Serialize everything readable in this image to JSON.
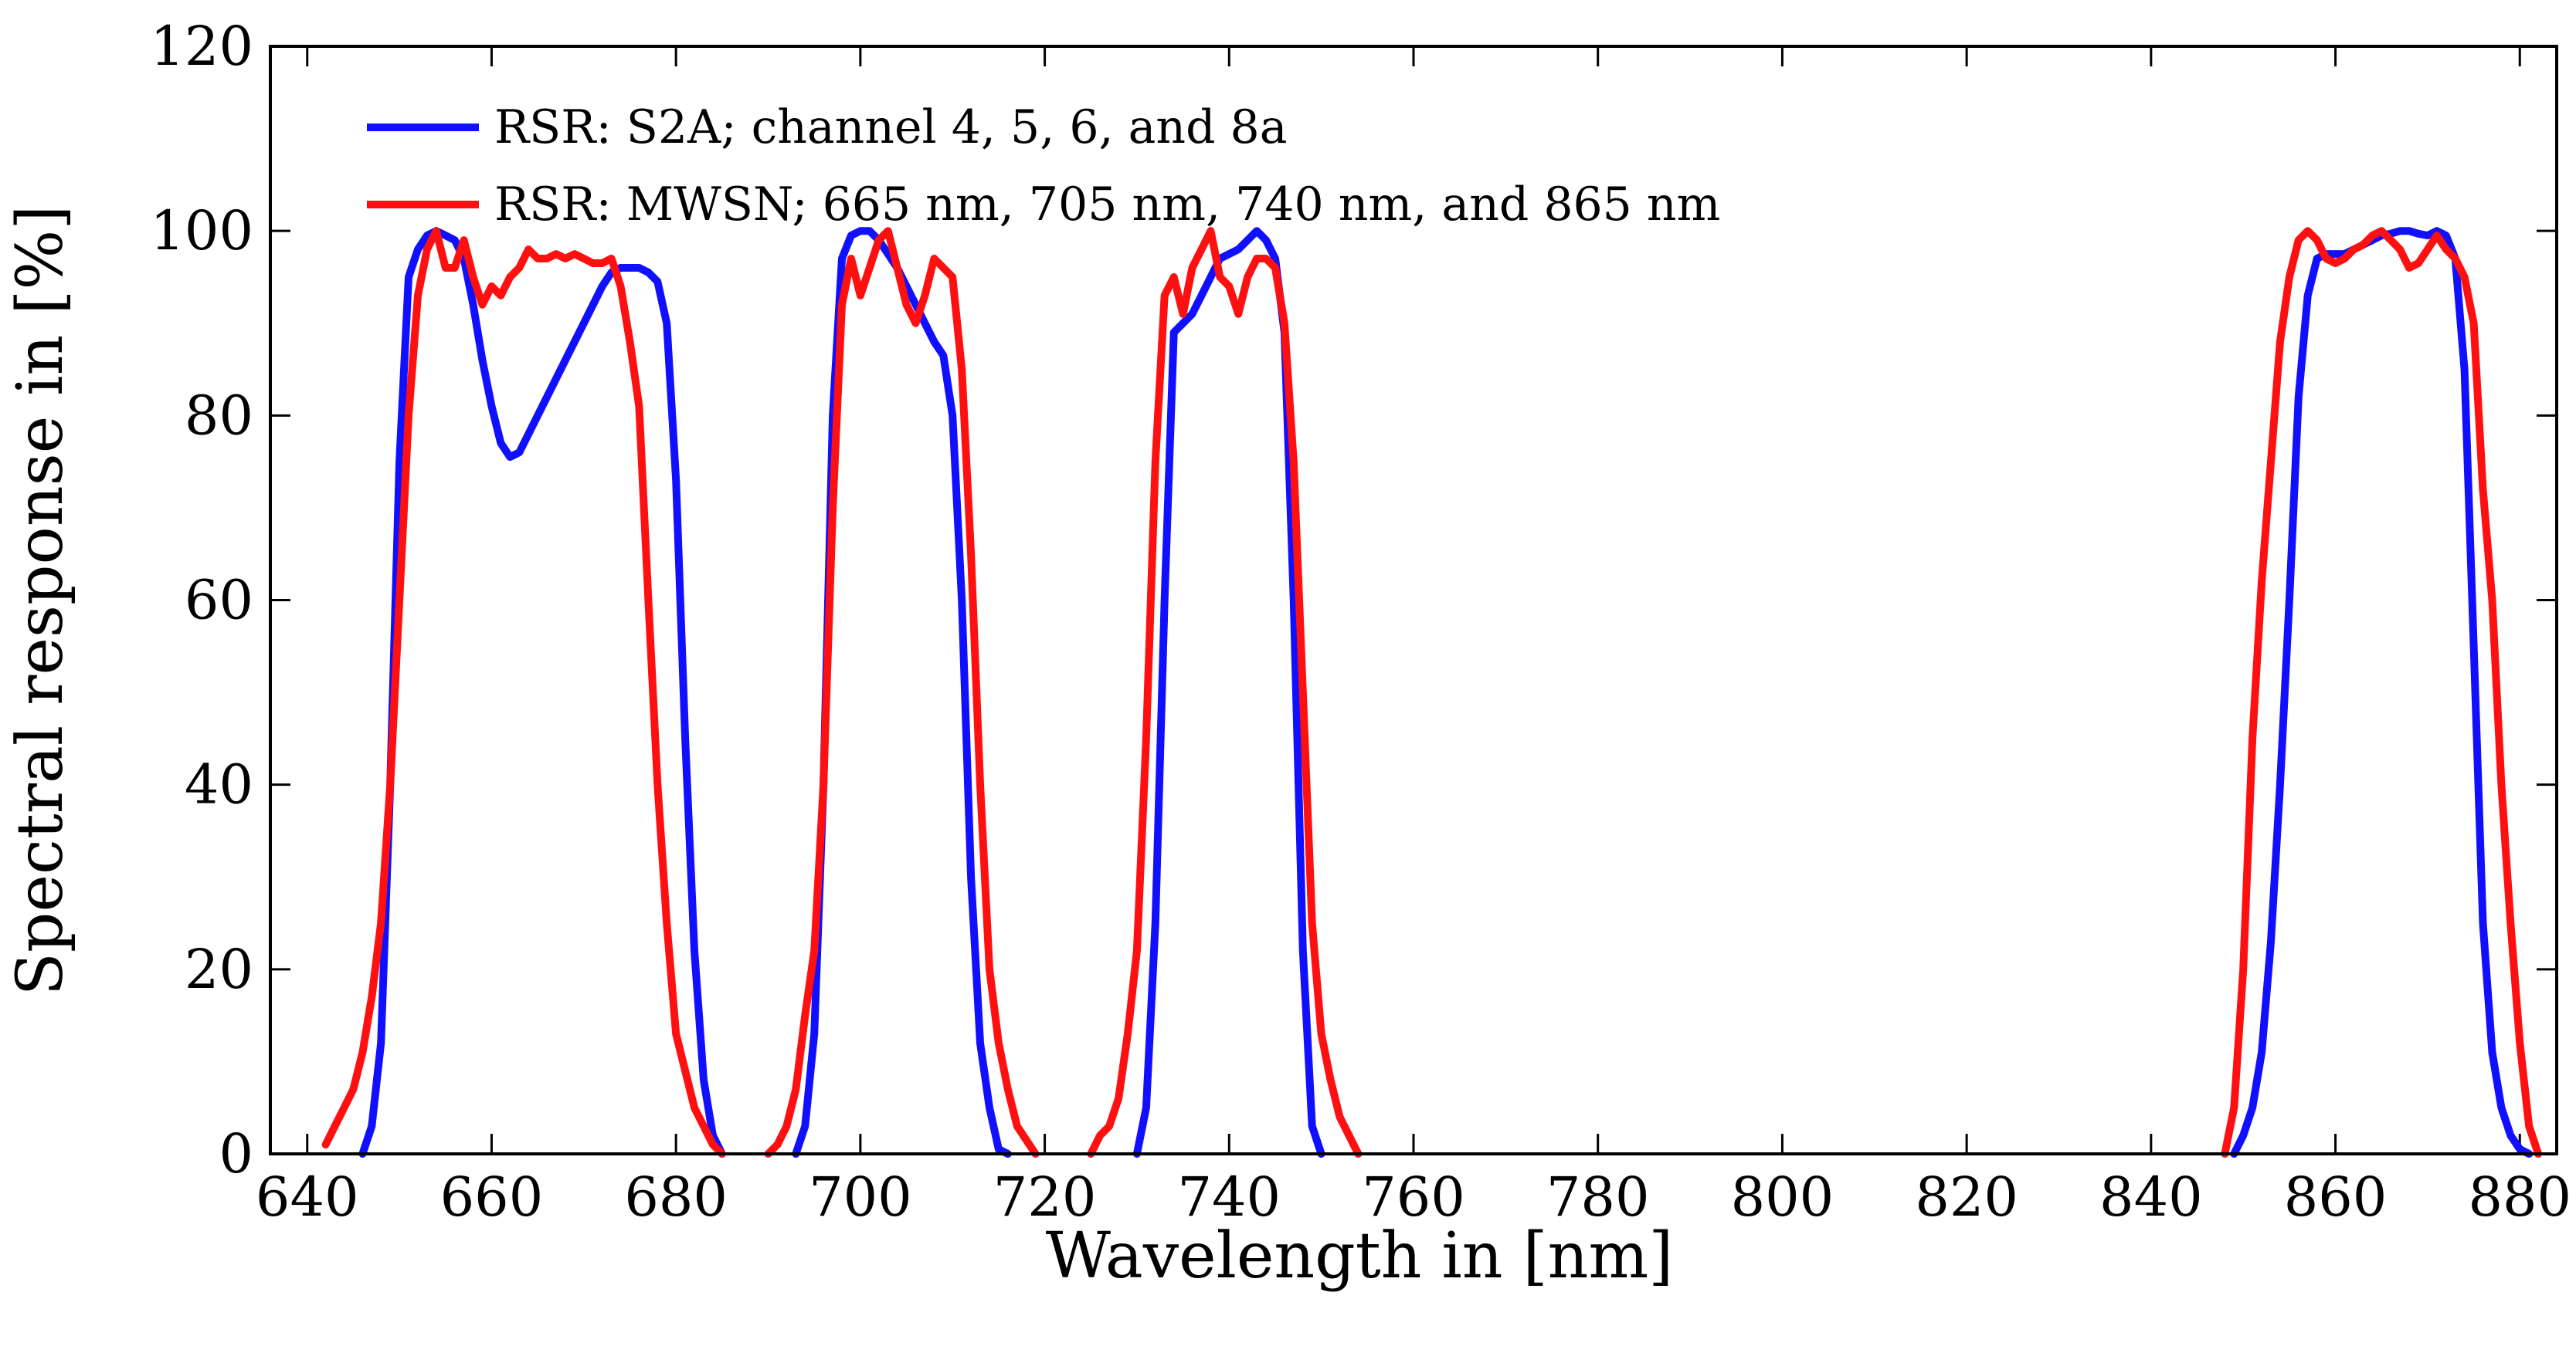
{
  "chart_data": {
    "type": "line",
    "title": "",
    "xlabel": "Wavelength in [nm]",
    "ylabel": "Spectral response in [%]",
    "xlim": [
      636,
      884
    ],
    "ylim": [
      0,
      120
    ],
    "xticks": [
      640,
      660,
      680,
      700,
      720,
      740,
      760,
      780,
      800,
      820,
      840,
      860,
      880
    ],
    "yticks": [
      0,
      20,
      40,
      60,
      80,
      100,
      120
    ],
    "grid": false,
    "legend_position": "top-left",
    "series": [
      {
        "name": "RSR: S2A; channel 4, 5, 6, and 8a",
        "color": "#1010ff",
        "segments": [
          [
            [
              646,
              0
            ],
            [
              647,
              3
            ],
            [
              648,
              12
            ],
            [
              649,
              40
            ],
            [
              650,
              75
            ],
            [
              651,
              95
            ],
            [
              652,
              98
            ],
            [
              653,
              99.5
            ],
            [
              654,
              100
            ],
            [
              655,
              99.5
            ],
            [
              656,
              99
            ],
            [
              657,
              97
            ],
            [
              658,
              92
            ],
            [
              659,
              86
            ],
            [
              660,
              81
            ],
            [
              661,
              77
            ],
            [
              662,
              75.5
            ],
            [
              663,
              76
            ],
            [
              664,
              78
            ],
            [
              666,
              82
            ],
            [
              668,
              86
            ],
            [
              670,
              90
            ],
            [
              672,
              94
            ],
            [
              673,
              95.5
            ],
            [
              674,
              96
            ],
            [
              676,
              96
            ],
            [
              677,
              95.5
            ],
            [
              678,
              94.5
            ],
            [
              679,
              90
            ],
            [
              680,
              73
            ],
            [
              681,
              45
            ],
            [
              682,
              22
            ],
            [
              683,
              8
            ],
            [
              684,
              2
            ],
            [
              685,
              0
            ]
          ],
          [
            [
              693,
              0
            ],
            [
              694,
              3
            ],
            [
              695,
              13
            ],
            [
              696,
              40
            ],
            [
              697,
              80
            ],
            [
              698,
              97
            ],
            [
              699,
              99.5
            ],
            [
              700,
              100
            ],
            [
              701,
              100
            ],
            [
              702,
              99
            ],
            [
              703,
              97.5
            ],
            [
              704,
              96
            ],
            [
              705,
              94
            ],
            [
              706,
              92
            ],
            [
              707,
              90
            ],
            [
              708,
              88
            ],
            [
              709,
              86.5
            ],
            [
              710,
              80
            ],
            [
              711,
              60
            ],
            [
              712,
              30
            ],
            [
              713,
              12
            ],
            [
              714,
              5
            ],
            [
              715,
              0.5
            ],
            [
              716,
              0
            ]
          ],
          [
            [
              730,
              0
            ],
            [
              731,
              5
            ],
            [
              732,
              25
            ],
            [
              733,
              60
            ],
            [
              734,
              89
            ],
            [
              735,
              90
            ],
            [
              736,
              91
            ],
            [
              737,
              93
            ],
            [
              738,
              95
            ],
            [
              739,
              97
            ],
            [
              740,
              97.5
            ],
            [
              741,
              98
            ],
            [
              742,
              99
            ],
            [
              743,
              100
            ],
            [
              744,
              99
            ],
            [
              745,
              97
            ],
            [
              746,
              89
            ],
            [
              747,
              60
            ],
            [
              748,
              22
            ],
            [
              749,
              3
            ],
            [
              750,
              0
            ]
          ],
          [
            [
              849,
              0
            ],
            [
              850,
              2
            ],
            [
              851,
              5
            ],
            [
              852,
              11
            ],
            [
              853,
              23
            ],
            [
              854,
              40
            ],
            [
              855,
              60
            ],
            [
              856,
              82
            ],
            [
              857,
              93
            ],
            [
              858,
              97
            ],
            [
              859,
              97.5
            ],
            [
              860,
              97.5
            ],
            [
              861,
              97.5
            ],
            [
              862,
              98
            ],
            [
              863,
              98.5
            ],
            [
              864,
              99
            ],
            [
              865,
              99.5
            ],
            [
              866,
              99.7
            ],
            [
              867,
              100
            ],
            [
              868,
              100
            ],
            [
              869,
              99.7
            ],
            [
              870,
              99.5
            ],
            [
              871,
              100
            ],
            [
              872,
              99.5
            ],
            [
              873,
              97
            ],
            [
              874,
              85
            ],
            [
              875,
              55
            ],
            [
              876,
              25
            ],
            [
              877,
              11
            ],
            [
              878,
              5
            ],
            [
              879,
              2
            ],
            [
              880,
              0.5
            ],
            [
              881,
              0
            ]
          ]
        ]
      },
      {
        "name": "RSR: MWSN; 665 nm, 705 nm, 740 nm, and 865 nm",
        "color": "#ff1010",
        "segments": [
          [
            [
              642,
              1
            ],
            [
              643,
              3
            ],
            [
              644,
              5
            ],
            [
              645,
              7
            ],
            [
              646,
              11
            ],
            [
              647,
              17
            ],
            [
              648,
              25
            ],
            [
              649,
              40
            ],
            [
              650,
              60
            ],
            [
              651,
              80
            ],
            [
              652,
              93
            ],
            [
              653,
              98
            ],
            [
              654,
              100
            ],
            [
              655,
              96
            ],
            [
              656,
              96
            ],
            [
              657,
              99
            ],
            [
              658,
              95
            ],
            [
              659,
              92
            ],
            [
              660,
              94
            ],
            [
              661,
              93
            ],
            [
              662,
              95
            ],
            [
              663,
              96
            ],
            [
              664,
              98
            ],
            [
              665,
              97
            ],
            [
              666,
              97
            ],
            [
              667,
              97.5
            ],
            [
              668,
              97
            ],
            [
              669,
              97.5
            ],
            [
              670,
              97
            ],
            [
              671,
              96.5
            ],
            [
              672,
              96.5
            ],
            [
              673,
              97
            ],
            [
              674,
              94
            ],
            [
              675,
              88
            ],
            [
              676,
              81
            ],
            [
              677,
              60
            ],
            [
              678,
              40
            ],
            [
              679,
              25
            ],
            [
              680,
              13
            ],
            [
              681,
              9
            ],
            [
              682,
              5
            ],
            [
              683,
              3
            ],
            [
              684,
              1
            ],
            [
              685,
              0
            ]
          ],
          [
            [
              690,
              0
            ],
            [
              691,
              1
            ],
            [
              692,
              3
            ],
            [
              693,
              7
            ],
            [
              694,
              15
            ],
            [
              695,
              22
            ],
            [
              696,
              40
            ],
            [
              697,
              70
            ],
            [
              698,
              92
            ],
            [
              699,
              97
            ],
            [
              700,
              93
            ],
            [
              701,
              96
            ],
            [
              702,
              99
            ],
            [
              703,
              100
            ],
            [
              704,
              96
            ],
            [
              705,
              92
            ],
            [
              706,
              90
            ],
            [
              707,
              93
            ],
            [
              708,
              97
            ],
            [
              709,
              96
            ],
            [
              710,
              95
            ],
            [
              711,
              85
            ],
            [
              712,
              65
            ],
            [
              713,
              40
            ],
            [
              714,
              20
            ],
            [
              715,
              12
            ],
            [
              716,
              7
            ],
            [
              717,
              3
            ],
            [
              718,
              1.5
            ],
            [
              719,
              0
            ]
          ],
          [
            [
              725,
              0
            ],
            [
              726,
              2
            ],
            [
              727,
              3
            ],
            [
              728,
              6
            ],
            [
              729,
              13
            ],
            [
              730,
              22
            ],
            [
              731,
              45
            ],
            [
              732,
              75
            ],
            [
              733,
              93
            ],
            [
              734,
              95
            ],
            [
              735,
              91
            ],
            [
              736,
              96
            ],
            [
              737,
              98
            ],
            [
              738,
              100
            ],
            [
              739,
              95
            ],
            [
              740,
              94
            ],
            [
              741,
              91
            ],
            [
              742,
              95
            ],
            [
              743,
              97
            ],
            [
              744,
              97
            ],
            [
              745,
              96
            ],
            [
              746,
              90
            ],
            [
              747,
              75
            ],
            [
              748,
              50
            ],
            [
              749,
              25
            ],
            [
              750,
              13
            ],
            [
              751,
              8
            ],
            [
              752,
              4
            ],
            [
              753,
              2
            ],
            [
              754,
              0
            ]
          ],
          [
            [
              848,
              0
            ],
            [
              849,
              5
            ],
            [
              850,
              20
            ],
            [
              851,
              45
            ],
            [
              852,
              62
            ],
            [
              853,
              75
            ],
            [
              854,
              88
            ],
            [
              855,
              95
            ],
            [
              856,
              99
            ],
            [
              857,
              100
            ],
            [
              858,
              99
            ],
            [
              859,
              97
            ],
            [
              860,
              96.5
            ],
            [
              861,
              97
            ],
            [
              862,
              98
            ],
            [
              863,
              98.5
            ],
            [
              864,
              99.5
            ],
            [
              865,
              100
            ],
            [
              866,
              99
            ],
            [
              867,
              98
            ],
            [
              868,
              96
            ],
            [
              869,
              96.5
            ],
            [
              870,
              98
            ],
            [
              871,
              99.5
            ],
            [
              872,
              98
            ],
            [
              873,
              97
            ],
            [
              874,
              95
            ],
            [
              875,
              90
            ],
            [
              876,
              72
            ],
            [
              877,
              60
            ],
            [
              878,
              40
            ],
            [
              879,
              25
            ],
            [
              880,
              12
            ],
            [
              881,
              3
            ],
            [
              882,
              0
            ]
          ]
        ]
      }
    ]
  }
}
